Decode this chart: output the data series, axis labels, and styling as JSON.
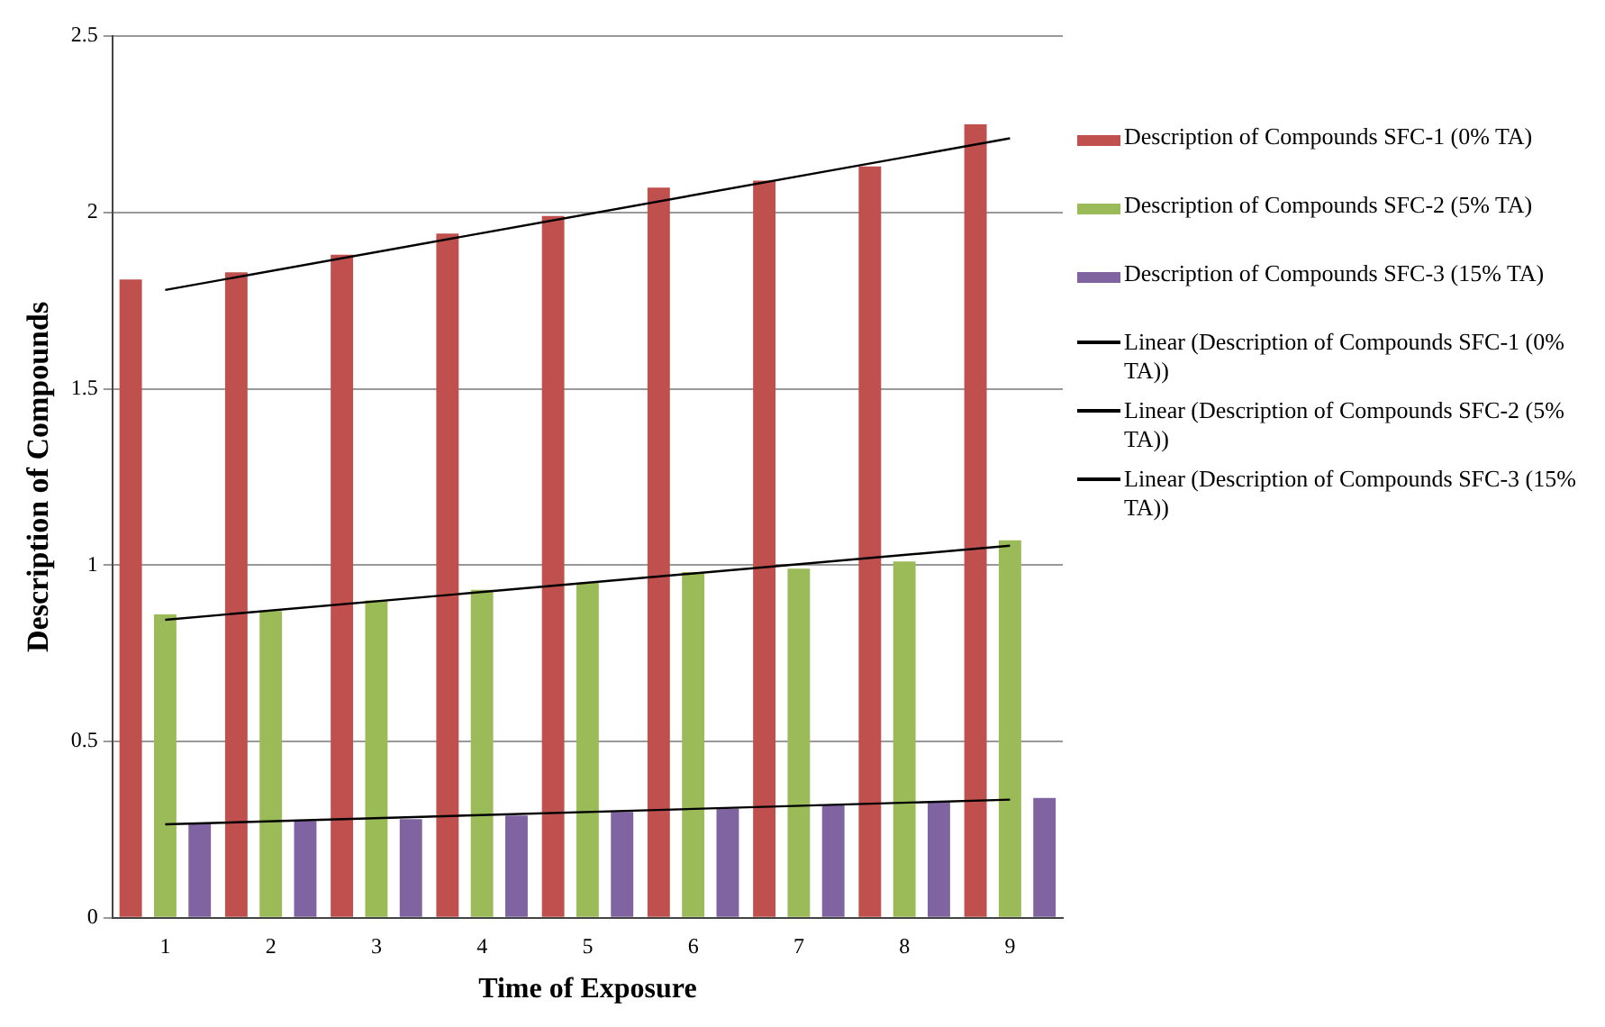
{
  "chart_data": {
    "type": "bar",
    "xlabel": "Time of Exposure",
    "ylabel": "Description of Compounds",
    "categories": [
      "1",
      "2",
      "3",
      "4",
      "5",
      "6",
      "7",
      "8",
      "9"
    ],
    "series": [
      {
        "name": "Description of Compounds SFC-1 (0% TA)",
        "color": "#c0504d",
        "values": [
          1.81,
          1.83,
          1.88,
          1.94,
          1.99,
          2.07,
          2.09,
          2.13,
          2.25
        ]
      },
      {
        "name": "Description of Compounds SFC-2 (5% TA)",
        "color": "#9bbb59",
        "values": [
          0.86,
          0.87,
          0.9,
          0.93,
          0.95,
          0.98,
          0.99,
          1.01,
          1.07
        ]
      },
      {
        "name": "Description of Compounds SFC-3 (15% TA)",
        "color": "#8064a2",
        "values": [
          0.27,
          0.275,
          0.28,
          0.29,
          0.3,
          0.31,
          0.32,
          0.33,
          0.34
        ]
      },
      {
        "name": "Linear (Description of Compounds SFC-1 (0% TA))",
        "type": "line",
        "color": "#000000",
        "x": [
          "1",
          "9"
        ],
        "values": [
          1.78,
          2.21
        ]
      },
      {
        "name": "Linear (Description of Compounds SFC-2 (5% TA))",
        "type": "line",
        "color": "#000000",
        "x": [
          "1",
          "9"
        ],
        "values": [
          0.845,
          1.055
        ]
      },
      {
        "name": "Linear (Description of Compounds SFC-3 (15% TA))",
        "type": "line",
        "color": "#000000",
        "x": [
          "1",
          "9"
        ],
        "values": [
          0.265,
          0.335
        ]
      }
    ],
    "ylim": [
      0,
      2.5
    ],
    "yticks": [
      0,
      0.5,
      1,
      1.5,
      2,
      2.5
    ],
    "grid": "y",
    "legend": "right",
    "marker": "none",
    "line_style": "solid"
  }
}
